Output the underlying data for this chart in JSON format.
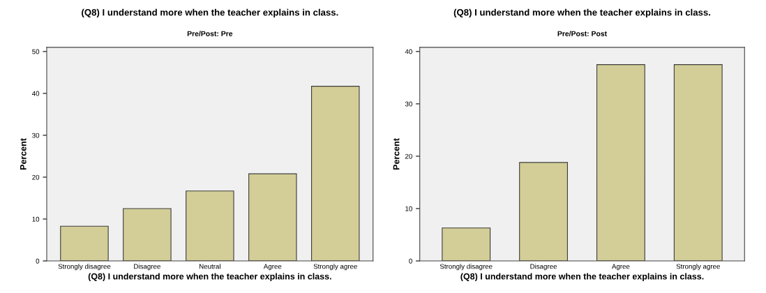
{
  "chart_data": [
    {
      "type": "bar",
      "title": "(Q8) I understand more when the teacher explains in class.",
      "subtitle": "Pre/Post: Pre",
      "xlabel": "(Q8) I understand more when the teacher explains in class.",
      "ylabel": "Percent",
      "categories": [
        "Strongly disagree",
        "Disagree",
        "Neutral",
        "Agree",
        "Strongly agree"
      ],
      "values": [
        8.3,
        12.5,
        16.7,
        20.8,
        41.7
      ],
      "color": "#d3ce97",
      "ylim": [
        0,
        51
      ],
      "yticks": [
        0,
        10,
        20,
        30,
        40,
        50
      ],
      "grid": false,
      "legend": false
    },
    {
      "type": "bar",
      "title": "(Q8) I understand more when the teacher explains in class.",
      "subtitle": "Pre/Post: Post",
      "xlabel": "(Q8) I understand more when the teacher explains in class.",
      "ylabel": "Percent",
      "categories": [
        "Strongly disagree",
        "Disagree",
        "Agree",
        "Strongly agree"
      ],
      "values": [
        6.3,
        18.8,
        37.5,
        37.5
      ],
      "color": "#d3ce97",
      "ylim": [
        0,
        40.8
      ],
      "yticks": [
        0,
        10,
        20,
        30,
        40
      ],
      "grid": false,
      "legend": false
    }
  ]
}
